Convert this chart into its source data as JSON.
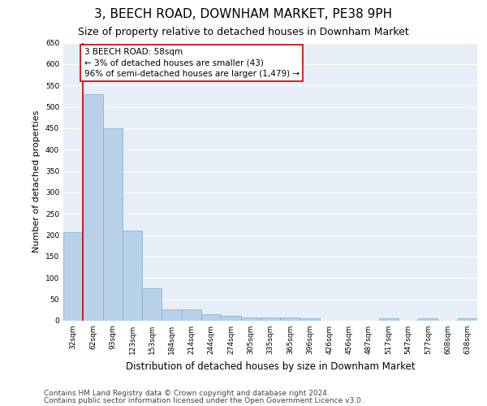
{
  "title": "3, BEECH ROAD, DOWNHAM MARKET, PE38 9PH",
  "subtitle": "Size of property relative to detached houses in Downham Market",
  "xlabel": "Distribution of detached houses by size in Downham Market",
  "ylabel": "Number of detached properties",
  "footer_line1": "Contains HM Land Registry data © Crown copyright and database right 2024.",
  "footer_line2": "Contains public sector information licensed under the Open Government Licence v3.0.",
  "categories": [
    "32sqm",
    "62sqm",
    "93sqm",
    "123sqm",
    "153sqm",
    "184sqm",
    "214sqm",
    "244sqm",
    "274sqm",
    "305sqm",
    "335sqm",
    "365sqm",
    "396sqm",
    "426sqm",
    "456sqm",
    "487sqm",
    "517sqm",
    "547sqm",
    "577sqm",
    "608sqm",
    "638sqm"
  ],
  "values": [
    207,
    530,
    450,
    210,
    75,
    27,
    27,
    15,
    12,
    8,
    8,
    8,
    5,
    0,
    0,
    0,
    5,
    0,
    5,
    0,
    5
  ],
  "bar_color": "#b8d0e8",
  "bar_edge_color": "#7aaed0",
  "highlight_line_color": "#cc0000",
  "annotation_text": "3 BEECH ROAD: 58sqm\n← 3% of detached houses are smaller (43)\n96% of semi-detached houses are larger (1,479) →",
  "annotation_box_color": "#ffffff",
  "annotation_border_color": "#cc0000",
  "ylim": [
    0,
    650
  ],
  "yticks": [
    0,
    50,
    100,
    150,
    200,
    250,
    300,
    350,
    400,
    450,
    500,
    550,
    600,
    650
  ],
  "background_color": "#ffffff",
  "plot_bg_color": "#e8eef7",
  "grid_color": "#ffffff",
  "title_fontsize": 11,
  "subtitle_fontsize": 9,
  "tick_fontsize": 6.5,
  "ylabel_fontsize": 8,
  "xlabel_fontsize": 8.5,
  "footer_fontsize": 6.5,
  "annotation_fontsize": 7.5
}
